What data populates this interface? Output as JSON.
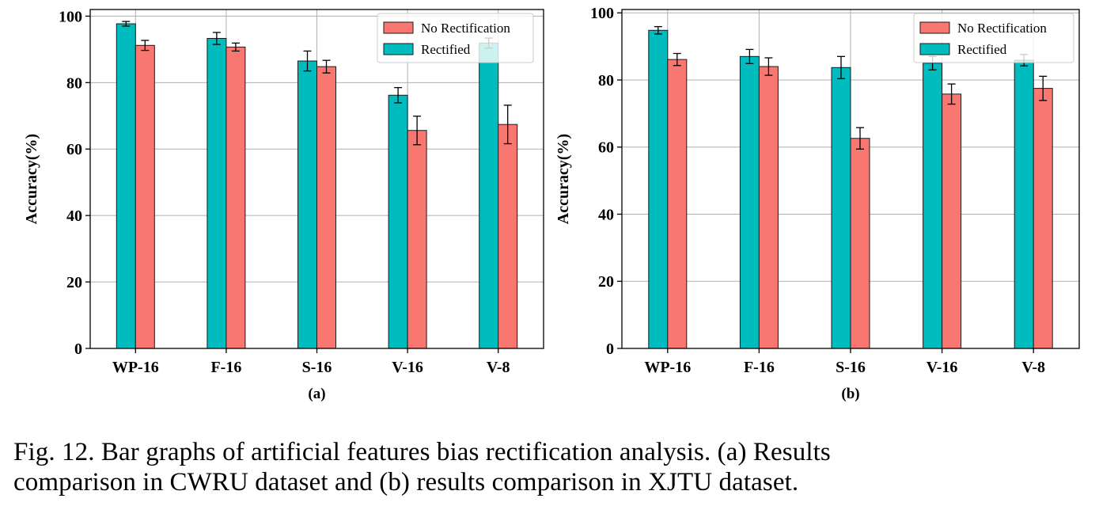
{
  "colors": {
    "rectified": "#00BCBE",
    "no_rectification": "#F87871",
    "grid": "#b0b0b0",
    "axis": "#000000"
  },
  "caption": {
    "line1": "Fig. 12.   Bar graphs of artificial features bias rectification analysis. (a) Results",
    "line2": "comparison in CWRU dataset and (b) results comparison in XJTU dataset."
  },
  "chart_data": [
    {
      "type": "bar",
      "panel_label": "(a)",
      "categories": [
        "WP-16",
        "F-16",
        "S-16",
        "V-16",
        "V-8"
      ],
      "series": [
        {
          "name": "Rectified",
          "values": [
            97.7,
            93.3,
            86.5,
            76.2,
            91.9
          ],
          "errors": [
            0.7,
            1.8,
            3.0,
            2.3,
            1.5
          ]
        },
        {
          "name": "No Rectification",
          "values": [
            91.2,
            90.7,
            84.8,
            65.6,
            67.4
          ],
          "errors": [
            1.5,
            1.2,
            1.9,
            4.3,
            5.8
          ]
        }
      ],
      "legend": [
        "No Rectification",
        "Rectified"
      ],
      "legend_position": "top-right",
      "ylabel": "Accuracy(%)",
      "xlabel": "",
      "ylim": [
        0,
        102
      ],
      "yticks": [
        0,
        20,
        40,
        60,
        80,
        100
      ],
      "grid": true
    },
    {
      "type": "bar",
      "panel_label": "(b)",
      "categories": [
        "WP-16",
        "F-16",
        "S-16",
        "V-16",
        "V-8"
      ],
      "series": [
        {
          "name": "Rectified",
          "values": [
            94.8,
            87.0,
            83.7,
            85.0,
            85.9
          ],
          "errors": [
            1.1,
            2.1,
            3.3,
            2.0,
            1.7
          ]
        },
        {
          "name": "No Rectification",
          "values": [
            86.1,
            84.0,
            62.6,
            75.8,
            77.5
          ],
          "errors": [
            1.8,
            2.6,
            3.2,
            3.0,
            3.6
          ]
        }
      ],
      "legend": [
        "No Rectification",
        "Rectified"
      ],
      "legend_position": "top-right",
      "ylabel": "Accuracy(%)",
      "xlabel": "",
      "ylim": [
        0,
        101
      ],
      "yticks": [
        0,
        20,
        40,
        60,
        80,
        100
      ],
      "grid": true
    }
  ]
}
